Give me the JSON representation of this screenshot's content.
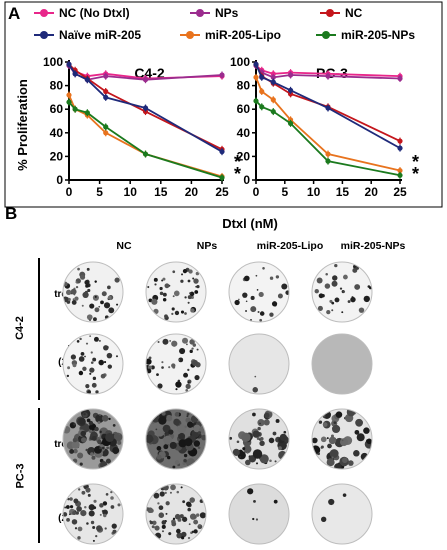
{
  "panel_a_label": "A",
  "panel_b_label": "B",
  "legend": [
    {
      "label": "NC (No Dtxl)",
      "color": "#e8268a"
    },
    {
      "label": "NPs",
      "color": "#9b2c8e"
    },
    {
      "label": "NC",
      "color": "#c4161c"
    },
    {
      "label": "Naïve miR-205",
      "color": "#1f2a7a"
    },
    {
      "label": "miR-205-Lipo",
      "color": "#e8731e"
    },
    {
      "label": "miR-205-NPs",
      "color": "#1b7a1e"
    }
  ],
  "shared_xlabel": "Dtxl (nM)",
  "significance_mark": "*",
  "chart_data": [
    {
      "type": "line",
      "title": "C4-2",
      "xlabel": "Dtxl (nM)",
      "ylabel": "% Proliferation",
      "xlim": [
        0,
        25
      ],
      "ylim": [
        0,
        100
      ],
      "xticks": [
        0,
        5,
        10,
        15,
        20,
        25
      ],
      "yticks": [
        0,
        20,
        40,
        60,
        80,
        100
      ],
      "x": [
        0,
        1,
        3,
        6,
        12.5,
        25
      ],
      "series": [
        {
          "name": "NC (No Dtxl)",
          "color": "#e8268a",
          "values": [
            97,
            92,
            88,
            90,
            86,
            88
          ]
        },
        {
          "name": "NPs",
          "color": "#9b2c8e",
          "values": [
            97,
            90,
            85,
            88,
            85,
            89
          ]
        },
        {
          "name": "NC",
          "color": "#c4161c",
          "values": [
            98,
            93,
            86,
            75,
            58,
            26
          ]
        },
        {
          "name": "Naïve miR-205",
          "color": "#1f2a7a",
          "values": [
            98,
            90,
            85,
            70,
            61,
            24
          ]
        },
        {
          "name": "miR-205-Lipo",
          "color": "#e8731e",
          "values": [
            72,
            60,
            55,
            40,
            22,
            3
          ]
        },
        {
          "name": "miR-205-NPs",
          "color": "#1b7a1e",
          "values": [
            66,
            60,
            57,
            45,
            22,
            2
          ]
        }
      ],
      "annotations": [
        "*",
        "*"
      ]
    },
    {
      "type": "line",
      "title": "PC-3",
      "xlabel": "Dtxl (nM)",
      "ylabel": "",
      "xlim": [
        0,
        25
      ],
      "ylim": [
        0,
        100
      ],
      "xticks": [
        0,
        5,
        10,
        15,
        20,
        25
      ],
      "yticks": [
        0,
        20,
        40,
        60,
        80,
        100
      ],
      "x": [
        0,
        1,
        3,
        6,
        12.5,
        25
      ],
      "series": [
        {
          "name": "NC (No Dtxl)",
          "color": "#e8268a",
          "values": [
            97,
            93,
            90,
            91,
            90,
            88
          ]
        },
        {
          "name": "NPs",
          "color": "#9b2c8e",
          "values": [
            97,
            91,
            87,
            89,
            88,
            86
          ]
        },
        {
          "name": "NC",
          "color": "#c4161c",
          "values": [
            98,
            88,
            82,
            73,
            62,
            33
          ]
        },
        {
          "name": "Naïve miR-205",
          "color": "#1f2a7a",
          "values": [
            98,
            87,
            83,
            76,
            61,
            27
          ]
        },
        {
          "name": "miR-205-Lipo",
          "color": "#e8731e",
          "values": [
            87,
            75,
            68,
            51,
            22,
            8
          ]
        },
        {
          "name": "miR-205-NPs",
          "color": "#1b7a1e",
          "values": [
            67,
            62,
            58,
            48,
            16,
            4
          ]
        }
      ],
      "annotations": [
        "*",
        "*"
      ]
    }
  ],
  "colony_assay": {
    "columns": [
      "NC",
      "NPs",
      "miR-205-Lipo",
      "miR-205-NPs"
    ],
    "cell_lines": [
      "C4-2",
      "PC-3"
    ],
    "rows": [
      {
        "label_line1": "No",
        "label_line2": "treatment"
      },
      {
        "label_line1": "Dtxl",
        "label_line2": "(2.5 nM)"
      },
      {
        "label_line1": "No",
        "label_line2": "treatment"
      },
      {
        "label_line1": "Dtxl",
        "label_line2": "(2.5 nM)"
      }
    ]
  }
}
